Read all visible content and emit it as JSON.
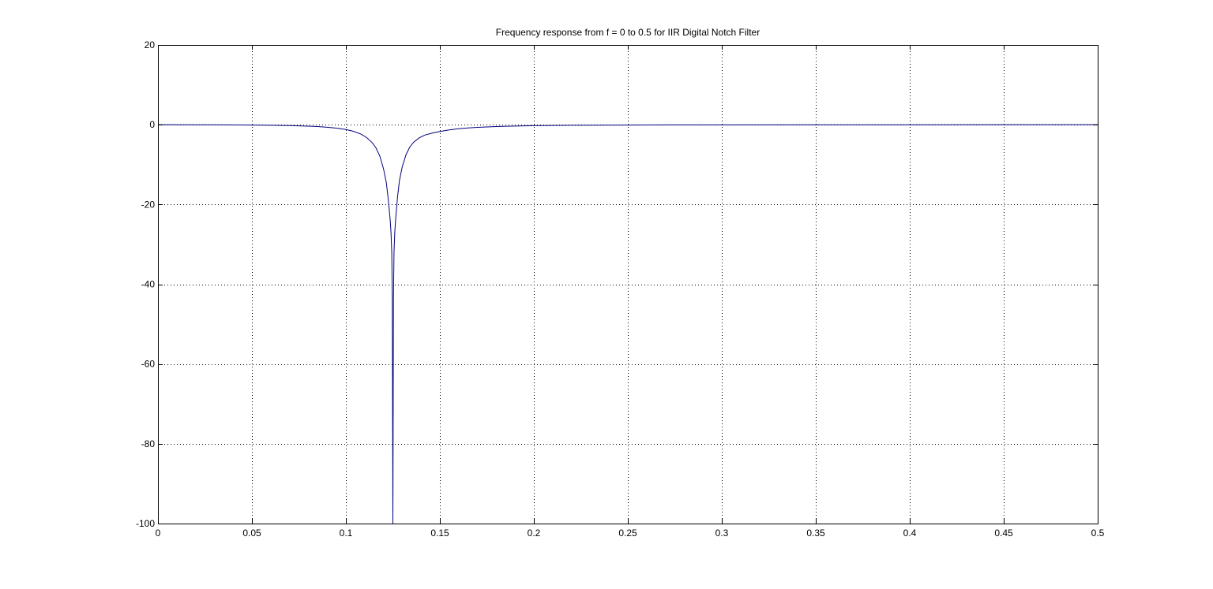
{
  "chart_data": {
    "type": "line",
    "title": "Frequency response from f = 0 to 0.5 for IIR Digital Notch Filter",
    "xlabel": "",
    "ylabel": "",
    "xlim": [
      0,
      0.5
    ],
    "ylim": [
      -100,
      20
    ],
    "xticks": [
      0,
      0.05,
      0.1,
      0.15,
      0.2,
      0.25,
      0.3,
      0.35,
      0.4,
      0.45,
      0.5
    ],
    "xtick_labels": [
      "0",
      "0.05",
      "0.1",
      "0.15",
      "0.2",
      "0.25",
      "0.3",
      "0.35",
      "0.4",
      "0.45",
      "0.5"
    ],
    "yticks": [
      20,
      0,
      -20,
      -40,
      -60,
      -80,
      -100
    ],
    "ytick_labels": [
      "20",
      "0",
      "-20",
      "-40",
      "-60",
      "-80",
      "-100"
    ],
    "grid": true,
    "grid_style": "dotted",
    "legend": "none",
    "series": [
      {
        "color": "#00007f",
        "x": [
          0,
          0.02,
          0.04,
          0.05,
          0.06,
          0.07,
          0.08,
          0.085,
          0.09,
          0.095,
          0.1,
          0.104,
          0.108,
          0.111,
          0.114,
          0.116,
          0.118,
          0.12,
          0.1215,
          0.1225,
          0.1235,
          0.124,
          0.1244,
          0.1247,
          0.1249,
          0.125,
          0.1251,
          0.1253,
          0.1256,
          0.126,
          0.1265,
          0.1275,
          0.1285,
          0.13,
          0.132,
          0.134,
          0.136,
          0.139,
          0.142,
          0.146,
          0.15,
          0.155,
          0.16,
          0.165,
          0.17,
          0.18,
          0.19,
          0.2,
          0.22,
          0.25,
          0.27,
          0.3,
          0.35,
          0.4,
          0.45,
          0.5
        ],
        "y": [
          0,
          -0.02,
          -0.05,
          -0.08,
          -0.13,
          -0.22,
          -0.36,
          -0.47,
          -0.63,
          -0.86,
          -1.2,
          -1.65,
          -2.35,
          -3.2,
          -4.5,
          -5.8,
          -7.8,
          -11,
          -14.5,
          -18.5,
          -23.5,
          -27,
          -32,
          -44,
          -81,
          -100,
          -81,
          -44,
          -32,
          -27,
          -23.5,
          -18,
          -14,
          -10.5,
          -7.5,
          -5.6,
          -4.4,
          -3.3,
          -2.6,
          -2.1,
          -1.7,
          -1.3,
          -1.0,
          -0.8,
          -0.65,
          -0.45,
          -0.33,
          -0.25,
          -0.15,
          -0.08,
          -0.05,
          -0.03,
          -0.01,
          -0.005,
          -0.002,
          0
        ]
      }
    ]
  }
}
